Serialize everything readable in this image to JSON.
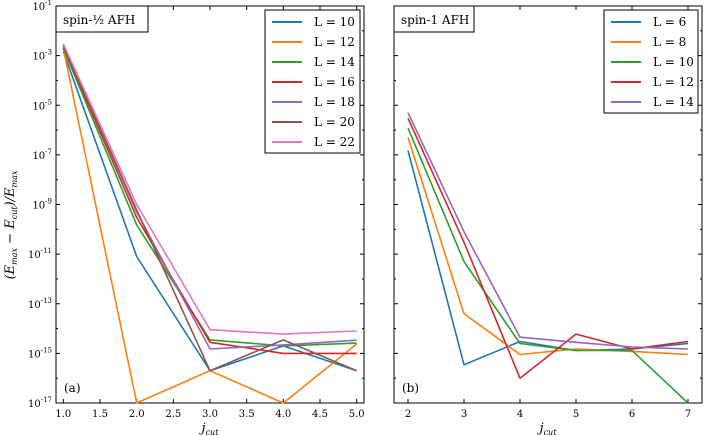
{
  "figure": {
    "ylabel": "(E_max − E_cut)/E_max",
    "ylabel_parts": {
      "open": "(",
      "e1": "E",
      "s1": "max",
      "minus": " − ",
      "e2": "E",
      "s2": "cut",
      "mid": ")/",
      "e3": "E",
      "s3": "max"
    },
    "y_exp_base": "10"
  },
  "chart_data": [
    {
      "type": "line",
      "title": "spin-½ AFH",
      "panel_label": "(a)",
      "xlabel": "j_cut",
      "xlabel_parts": {
        "j": "j",
        "sub": "cut"
      },
      "ylabel": "(E_max − E_cut)/E_max",
      "yscale": "log",
      "xlim": [
        0.9,
        5.1
      ],
      "ylim_exp": [
        -17,
        -1
      ],
      "xticks": [
        "1.0",
        "1.5",
        "2.0",
        "2.5",
        "3.0",
        "3.5",
        "4.0",
        "4.5",
        "5.0"
      ],
      "yticks_exp": [
        "-17",
        "-15",
        "-13",
        "-11",
        "-9",
        "-7",
        "-5",
        "-3",
        "-1"
      ],
      "legend_position": "top-right",
      "x": [
        1.0,
        2.0,
        3.0,
        4.0,
        5.0
      ],
      "series": [
        {
          "name": "L = 10",
          "color": "#1f77b4",
          "values": [
            0.0015,
            8e-12,
            2e-16,
            2e-15,
            2e-16
          ]
        },
        {
          "name": "L = 12",
          "color": "#ff7f0e",
          "values": [
            0.002,
            0,
            2e-16,
            0,
            2.4e-15
          ]
        },
        {
          "name": "L = 14",
          "color": "#2ca02c",
          "values": [
            0.002,
            1.5e-10,
            3.5e-15,
            2e-15,
            2.6e-15
          ]
        },
        {
          "name": "L = 16",
          "color": "#d62728",
          "values": [
            0.0025,
            3e-10,
            2.8e-15,
            1e-15,
            1e-15
          ]
        },
        {
          "name": "L = 18",
          "color": "#9467bd",
          "values": [
            0.0028,
            5e-10,
            1.5e-15,
            2.2e-15,
            3.4e-15
          ]
        },
        {
          "name": "L = 20",
          "color": "#8c564b",
          "values": [
            0.0025,
            6e-10,
            2e-16,
            3.5e-15,
            2e-16
          ]
        },
        {
          "name": "L = 22",
          "color": "#e377c2",
          "values": [
            0.003,
            1e-09,
            9e-15,
            6e-15,
            8e-15
          ]
        }
      ]
    },
    {
      "type": "line",
      "title": "spin-1 AFH",
      "panel_label": "(b)",
      "xlabel": "j_cut",
      "xlabel_parts": {
        "j": "j",
        "sub": "cut"
      },
      "ylabel": "(E_max − E_cut)/E_max",
      "yscale": "log",
      "xlim": [
        1.75,
        7.25
      ],
      "ylim_exp": [
        -17,
        -1
      ],
      "xticks": [
        "2",
        "3",
        "4",
        "5",
        "6",
        "7"
      ],
      "legend_position": "top-right",
      "x": [
        2,
        3,
        4,
        5,
        6,
        7
      ],
      "series": [
        {
          "name": "L = 6",
          "color": "#1f77b4",
          "values": [
            1.5e-07,
            3.5e-16,
            3e-15,
            1.3e-15,
            1.5e-15,
            2.5e-15
          ]
        },
        {
          "name": "L = 8",
          "color": "#ff7f0e",
          "values": [
            5e-07,
            4e-14,
            9e-16,
            1.5e-15,
            1.2e-15,
            9e-16
          ]
        },
        {
          "name": "L = 10",
          "color": "#2ca02c",
          "values": [
            1.2e-06,
            5e-12,
            2.5e-15,
            1.3e-15,
            1.3e-15,
            0
          ]
        },
        {
          "name": "L = 12",
          "color": "#d62728",
          "values": [
            3e-06,
            3e-11,
            1e-16,
            6e-15,
            1.5e-15,
            3e-15
          ]
        },
        {
          "name": "L = 14",
          "color": "#9467bd",
          "values": [
            5e-06,
            8e-11,
            4.5e-15,
            2.8e-15,
            1.8e-15,
            1.5e-15
          ]
        }
      ]
    }
  ]
}
